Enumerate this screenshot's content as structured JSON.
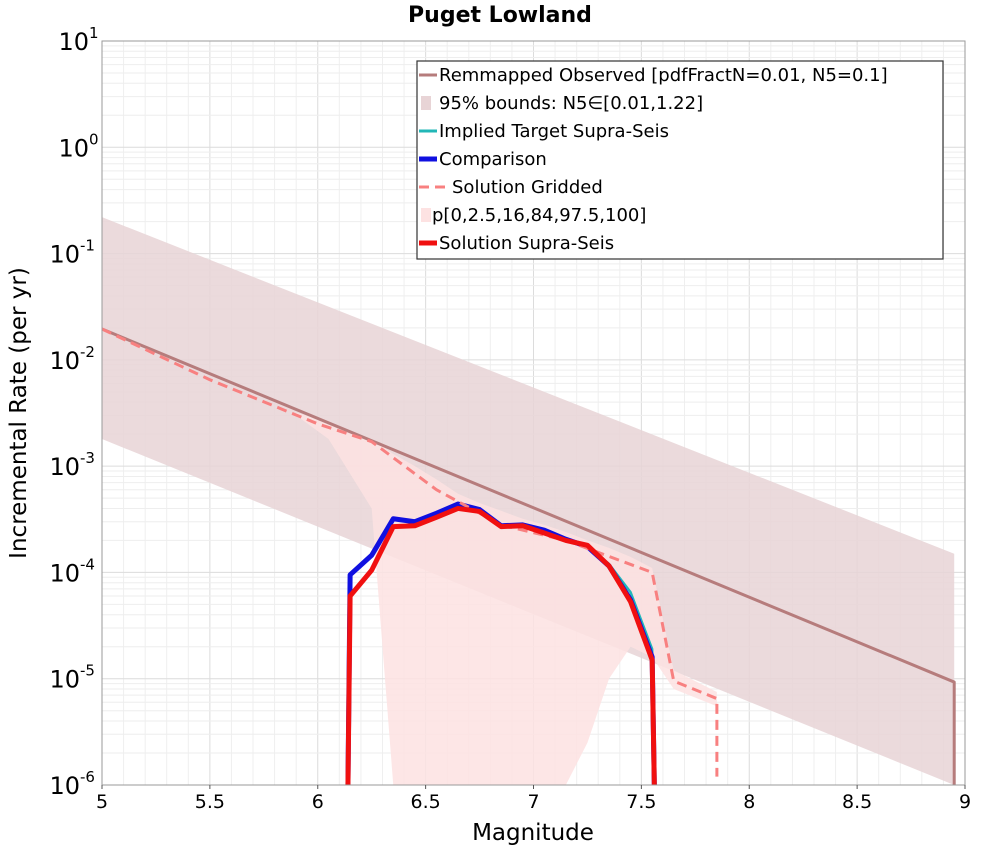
{
  "chart_data": {
    "type": "line",
    "title": "Puget Lowland",
    "xlabel": "Magnitude",
    "ylabel": "Incremental Rate (per yr)",
    "xlim": [
      5,
      9
    ],
    "ylim": [
      1e-06,
      10
    ],
    "yscale": "log",
    "grid": true,
    "legend_position": "top-right",
    "x_ticks": [
      "5",
      "5.5",
      "6",
      "6.5",
      "7",
      "7.5",
      "8",
      "8.5",
      "9"
    ],
    "y_ticks": [
      {
        "base": "10",
        "exp": "-6"
      },
      {
        "base": "10",
        "exp": "-5"
      },
      {
        "base": "10",
        "exp": "-4"
      },
      {
        "base": "10",
        "exp": "-3"
      },
      {
        "base": "10",
        "exp": "-2"
      },
      {
        "base": "10",
        "exp": "-1"
      },
      {
        "base": "10",
        "exp": "0"
      },
      {
        "base": "10",
        "exp": "1"
      }
    ],
    "series": [
      {
        "name": "Remmapped Observed [pdfFractN=0.01, N5=0.1]",
        "color": "#b67c7c",
        "style": "solid",
        "x": [
          5.0,
          8.95,
          8.95
        ],
        "y": [
          0.0195,
          9.3e-06,
          1e-06
        ]
      },
      {
        "name": "95% bounds: N5∈[0.01,1.22]",
        "color": "#e8d4d6",
        "style": "band",
        "x": [
          5.0,
          8.95
        ],
        "lower": [
          0.0018,
          8.5e-07
        ],
        "upper": [
          0.22,
          0.00015
        ]
      },
      {
        "name": "Implied Target Supra-Seis",
        "color": "#22b7b7",
        "style": "solid",
        "x": [
          6.14,
          6.15,
          6.25,
          6.35,
          6.45,
          6.55,
          6.65,
          6.75,
          6.85,
          6.95,
          7.05,
          7.15,
          7.25,
          7.35,
          7.45,
          7.55,
          7.56
        ],
        "y": [
          1e-06,
          9.5e-05,
          0.000145,
          0.00032,
          0.0003,
          0.00036,
          0.00044,
          0.00039,
          0.000275,
          0.00028,
          0.00025,
          0.000205,
          0.000175,
          0.00012,
          6.5e-05,
          1.9e-05,
          1e-06
        ]
      },
      {
        "name": "Comparison",
        "color": "#1010e0",
        "style": "solid",
        "x": [
          6.14,
          6.15,
          6.25,
          6.35,
          6.45,
          6.55,
          6.65,
          6.75,
          6.85,
          6.95,
          7.05,
          7.15,
          7.25,
          7.35,
          7.45,
          7.55,
          7.56
        ],
        "y": [
          1e-06,
          9.5e-05,
          0.000145,
          0.00032,
          0.0003,
          0.00036,
          0.00044,
          0.00039,
          0.000275,
          0.00028,
          0.00025,
          0.000205,
          0.000175,
          0.000115,
          5.5e-05,
          1.6e-05,
          1e-06
        ]
      },
      {
        "name": "Solution Gridded",
        "color": "#f88080",
        "style": "dashed",
        "x": [
          5.0,
          5.5,
          6.0,
          6.25,
          6.55,
          6.85,
          7.15,
          7.55,
          7.65,
          7.85,
          7.85
        ],
        "y": [
          0.0195,
          0.0065,
          0.0025,
          0.0017,
          0.0006,
          0.00028,
          0.0002,
          0.0001,
          9.5e-06,
          6.5e-06,
          1.2e-06
        ]
      },
      {
        "name": "p[0,2.5,16,84,97.5,100]",
        "color": "#fde2e2",
        "style": "band",
        "x": [
          5.9,
          6.05,
          6.25,
          6.35,
          6.45,
          6.55,
          6.65,
          6.75,
          6.85,
          6.95,
          7.05,
          7.15,
          7.25,
          7.35,
          7.45,
          7.55,
          7.65,
          7.85
        ],
        "lower": [
          0.003,
          0.0018,
          0.0004,
          1e-06,
          1e-06,
          1e-06,
          1e-06,
          1e-06,
          1e-06,
          1e-06,
          1e-06,
          1e-06,
          2.5e-06,
          1e-05,
          2e-05,
          1.6e-05,
          8e-06,
          5.5e-06
        ],
        "upper": [
          0.0032,
          0.0026,
          0.0018,
          0.0013,
          0.001,
          0.00075,
          0.00055,
          0.00045,
          0.00038,
          0.00032,
          0.00028,
          0.00024,
          0.0002,
          0.00017,
          0.00014,
          0.00011,
          1.2e-05,
          7.5e-06
        ]
      },
      {
        "name": "Solution Supra-Seis",
        "color": "#f01010",
        "style": "solid",
        "x": [
          6.14,
          6.15,
          6.25,
          6.35,
          6.45,
          6.55,
          6.65,
          6.75,
          6.85,
          6.95,
          7.05,
          7.15,
          7.25,
          7.35,
          7.45,
          7.55,
          7.56
        ],
        "y": [
          1e-06,
          6e-05,
          0.000105,
          0.00027,
          0.000275,
          0.00033,
          0.0004,
          0.000375,
          0.00027,
          0.000275,
          0.000235,
          0.0002,
          0.00018,
          0.000115,
          5.3e-05,
          1.5e-05,
          1e-06
        ]
      }
    ]
  }
}
